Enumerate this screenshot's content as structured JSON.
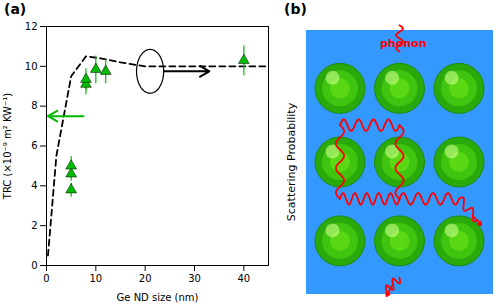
{
  "chart_data": [
    {
      "type": "scatter",
      "title": "(a)",
      "xlabel": "Ge ND size (nm)",
      "ylabel": "TRC (×10⁻⁹ m² KW⁻¹)",
      "xlim": [
        0,
        45
      ],
      "ylim": [
        0,
        12
      ],
      "xticks": [
        0,
        10,
        20,
        30,
        40
      ],
      "yticks": [
        0,
        2,
        4,
        6,
        8,
        10,
        12
      ],
      "series": [
        {
          "type": "line",
          "color": "black",
          "line_style": "dashed",
          "x": [
            0.3,
            2,
            5,
            8,
            11,
            15,
            20,
            30,
            40,
            45
          ],
          "values": [
            0.5,
            5.5,
            9.5,
            10.5,
            10.4,
            10.2,
            10.0,
            10.0,
            10.0,
            10.0
          ]
        },
        {
          "type": "scatter",
          "color": "#00bb00",
          "marker": "triangle",
          "x": [
            5,
            5,
            5,
            8,
            8,
            10,
            12,
            40
          ],
          "values": [
            3.8,
            4.6,
            5.0,
            9.1,
            9.35,
            9.85,
            9.75,
            10.3
          ],
          "yerr": [
            0.35,
            0.35,
            0.5,
            0.5,
            0.55,
            0.7,
            0.6,
            0.75
          ]
        }
      ],
      "annotations": [
        {
          "type": "arrow",
          "x1": 7.5,
          "y1": 7.5,
          "x2": 0.3,
          "y2": 7.5,
          "color": "#00bb00"
        },
        {
          "type": "ellipse",
          "x": 21,
          "y": 9.75,
          "width": 5.5,
          "height": 2.2,
          "color": "black"
        },
        {
          "type": "arrow",
          "x1": 23.8,
          "y1": 9.75,
          "x2": 33,
          "y2": 9.75,
          "color": "black"
        }
      ]
    },
    {
      "type": "diagram",
      "title": "(b)",
      "ylabel": "Scattering Probability",
      "color": "#3399ff",
      "annotations": [
        {
          "type": "text",
          "text": "phonon",
          "color": "red"
        }
      ]
    }
  ]
}
